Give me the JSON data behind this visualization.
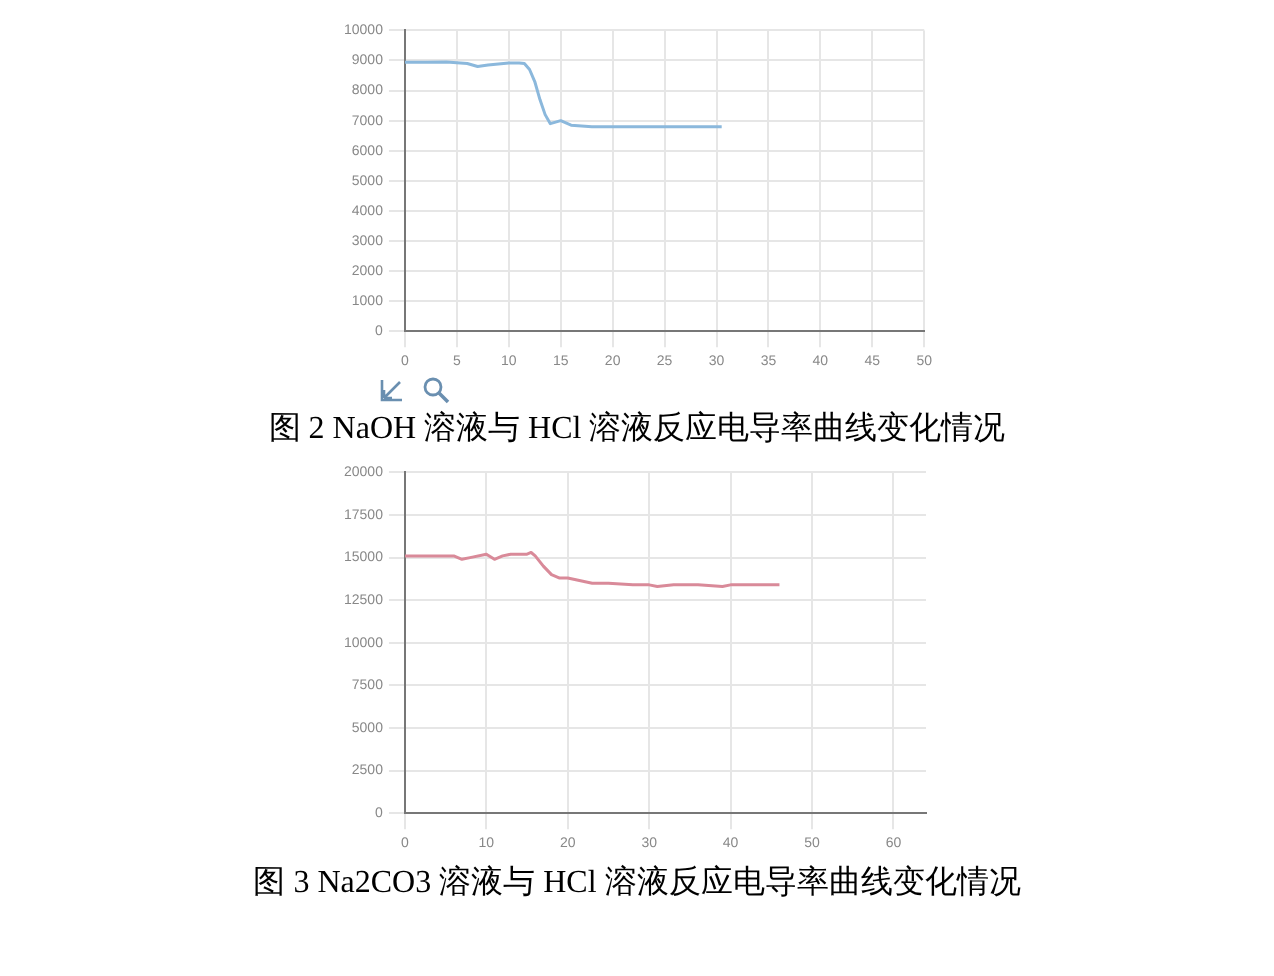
{
  "chart_data": [
    {
      "type": "line",
      "annotations": [
        "图 2 NaOH 溶液与 HCl 溶液反应电导率曲线变化情况"
      ],
      "x": [
        0,
        2,
        4,
        6,
        7,
        8,
        10,
        11,
        11.5,
        12,
        12.5,
        13,
        13.5,
        14,
        14.5,
        15,
        16,
        18,
        20,
        25,
        30.5
      ],
      "series": [
        {
          "color": "#8bb8dc",
          "values": [
            8940,
            8940,
            8950,
            8900,
            8800,
            8850,
            8920,
            8920,
            8900,
            8700,
            8300,
            7700,
            7200,
            6900,
            6950,
            7000,
            6850,
            6800,
            6800,
            6800,
            6800
          ]
        }
      ],
      "xlim": [
        0,
        50
      ],
      "xticks": [
        0,
        5,
        10,
        15,
        20,
        25,
        30,
        35,
        40,
        45,
        50
      ],
      "ylim": [
        0,
        10000
      ],
      "yticks": [
        0,
        1000,
        2000,
        3000,
        4000,
        5000,
        6000,
        7000,
        8000,
        9000,
        10000
      ],
      "grid": true
    },
    {
      "type": "line",
      "annotations": [
        "图 3 Na2CO3 溶液与 HCl 溶液反应电导率曲线变化情况"
      ],
      "x": [
        0,
        3,
        6,
        7,
        8,
        10,
        11,
        12,
        13,
        15,
        15.5,
        16,
        17,
        18,
        19,
        20,
        21,
        23,
        25,
        28,
        30,
        31,
        33,
        36,
        39,
        40,
        43,
        46
      ],
      "series": [
        {
          "color": "#d98a99",
          "values": [
            15100,
            15100,
            15100,
            14900,
            15000,
            15200,
            14900,
            15100,
            15200,
            15200,
            15300,
            15100,
            14500,
            14000,
            13800,
            13800,
            13700,
            13500,
            13500,
            13400,
            13400,
            13300,
            13400,
            13400,
            13300,
            13400,
            13400,
            13400
          ]
        }
      ],
      "xlim": [
        0,
        64
      ],
      "xticks": [
        0,
        10,
        20,
        30,
        40,
        50,
        60
      ],
      "ylim": [
        0,
        20000
      ],
      "yticks": [
        0,
        2500,
        5000,
        7500,
        10000,
        12500,
        15000,
        17500,
        20000
      ],
      "grid": true
    }
  ]
}
